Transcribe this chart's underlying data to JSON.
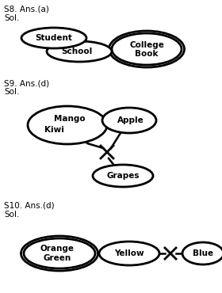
{
  "bg_color": "#ffffff",
  "sections": [
    {
      "title": "S8. Ans.(a)",
      "sol": "Sol."
    },
    {
      "title": "S9. Ans.(d)",
      "sol": "Sol."
    },
    {
      "title": "S10. Ans.(d)",
      "sol": "Sol."
    }
  ]
}
